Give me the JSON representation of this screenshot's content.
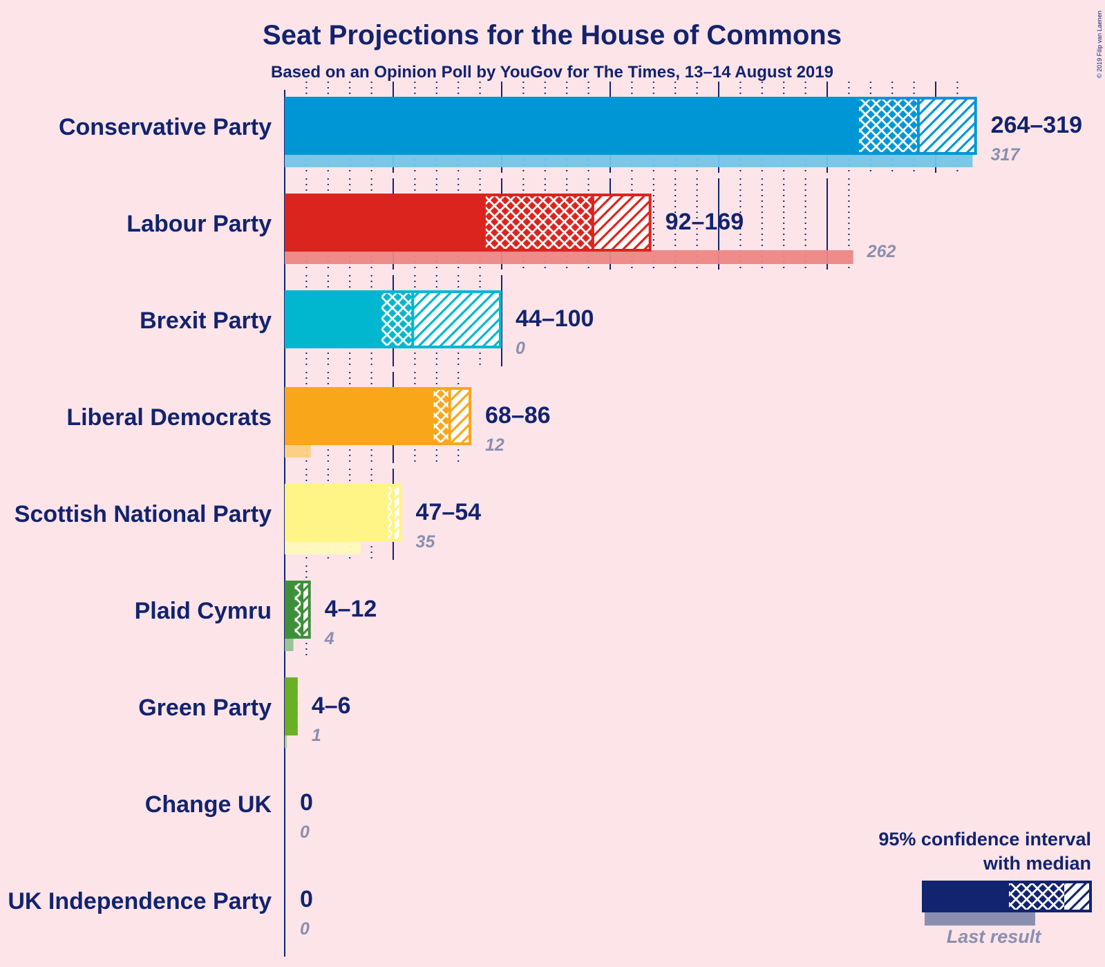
{
  "title": "Seat Projections for the House of Commons",
  "subtitle": "Based on an Opinion Poll by YouGov for The Times, 13–14 August 2019",
  "copyright": "© 2019 Filip van Laenen",
  "legend": {
    "title_line1": "95% confidence interval",
    "title_line2": "with median",
    "last_result_label": "Last result"
  },
  "chart_data": {
    "type": "bar",
    "orientation": "horizontal",
    "x_unit": "seats",
    "gridlines_major_every": 50,
    "gridlines_minor_every": 10,
    "parties": [
      {
        "name": "Conservative Party",
        "color": "#0096d6",
        "low": 264,
        "median": 292,
        "high": 319,
        "range_label": "264–319",
        "last_result": 317,
        "last_label": "317"
      },
      {
        "name": "Labour Party",
        "color": "#dc241f",
        "low": 92,
        "median": 142,
        "high": 169,
        "range_label": "92–169",
        "last_result": 262,
        "last_label": "262"
      },
      {
        "name": "Brexit Party",
        "color": "#00b7cf",
        "low": 44,
        "median": 59,
        "high": 100,
        "range_label": "44–100",
        "last_result": 0,
        "last_label": "0"
      },
      {
        "name": "Liberal Democrats",
        "color": "#faa61a",
        "low": 68,
        "median": 76,
        "high": 86,
        "range_label": "68–86",
        "last_result": 12,
        "last_label": "12"
      },
      {
        "name": "Scottish National Party",
        "color": "#fff486",
        "low": 47,
        "median": 50,
        "high": 54,
        "range_label": "47–54",
        "last_result": 35,
        "last_label": "35"
      },
      {
        "name": "Plaid Cymru",
        "color": "#3e8f3a",
        "low": 4,
        "median": 8,
        "high": 12,
        "range_label": "4–12",
        "last_result": 4,
        "last_label": "4"
      },
      {
        "name": "Green Party",
        "color": "#6ab023",
        "low": 4,
        "median": 5,
        "high": 6,
        "range_label": "4–6",
        "last_result": 1,
        "last_label": "1"
      },
      {
        "name": "Change UK",
        "color": "#222221",
        "low": 0,
        "median": 0,
        "high": 0,
        "range_label": "0",
        "last_result": 0,
        "last_label": "0"
      },
      {
        "name": "UK Independence Party",
        "color": "#70147a",
        "low": 0,
        "median": 0,
        "high": 0,
        "range_label": "0",
        "last_result": 0,
        "last_label": "0"
      }
    ]
  }
}
